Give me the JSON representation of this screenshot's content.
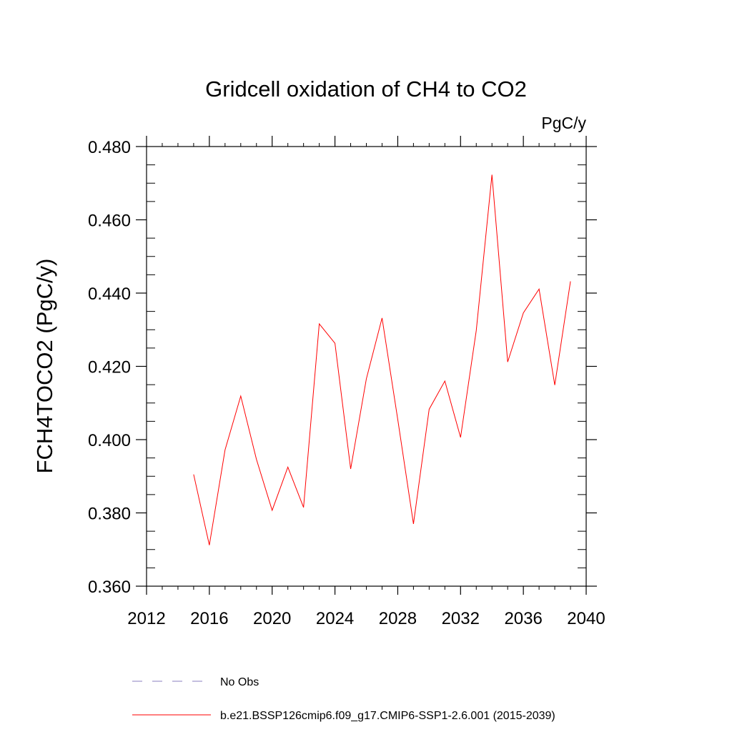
{
  "chart_data": {
    "type": "line",
    "title": "Gridcell oxidation of CH4 to CO2",
    "units": "PgC/y",
    "ylabel": "FCH4TOCO2  (PgC/y)",
    "xlabel": "",
    "xlim": [
      2012,
      2040
    ],
    "ylim": [
      0.36,
      0.48
    ],
    "x_ticks": [
      2012,
      2016,
      2020,
      2024,
      2028,
      2032,
      2036,
      2040
    ],
    "x_tick_labels": [
      "2012",
      "2016",
      "2020",
      "2024",
      "2028",
      "2032",
      "2036",
      "2040"
    ],
    "y_ticks": [
      0.36,
      0.38,
      0.4,
      0.42,
      0.44,
      0.46,
      0.48
    ],
    "y_tick_labels": [
      "0.360",
      "0.380",
      "0.400",
      "0.420",
      "0.440",
      "0.460",
      "0.480"
    ],
    "grid": false,
    "legend_position": "bottom",
    "series": [
      {
        "name": "b.e21.BSSP126cmip6.f09_g17.CMIP6-SSP1-2.6.001 (2015-2039)",
        "color": "#ff0000",
        "style": "solid",
        "x": [
          2015,
          2016,
          2017,
          2018,
          2019,
          2020,
          2021,
          2022,
          2023,
          2024,
          2025,
          2026,
          2027,
          2028,
          2029,
          2030,
          2031,
          2032,
          2033,
          2034,
          2035,
          2036,
          2037,
          2038,
          2039
        ],
        "values": [
          0.3905,
          0.3712,
          0.3972,
          0.4119,
          0.3946,
          0.3807,
          0.3925,
          0.3815,
          0.4316,
          0.4263,
          0.392,
          0.4166,
          0.4332,
          0.4055,
          0.377,
          0.4083,
          0.416,
          0.4006,
          0.4298,
          0.4723,
          0.4212,
          0.4346,
          0.4411,
          0.4149,
          0.4432
        ]
      }
    ],
    "legend": [
      {
        "label": "No Obs",
        "color": "#8a7fc0",
        "style": "dashed"
      },
      {
        "label": "b.e21.BSSP126cmip6.f09_g17.CMIP6-SSP1-2.6.001 (2015-2039)",
        "color": "#ff0000",
        "style": "solid"
      }
    ]
  }
}
